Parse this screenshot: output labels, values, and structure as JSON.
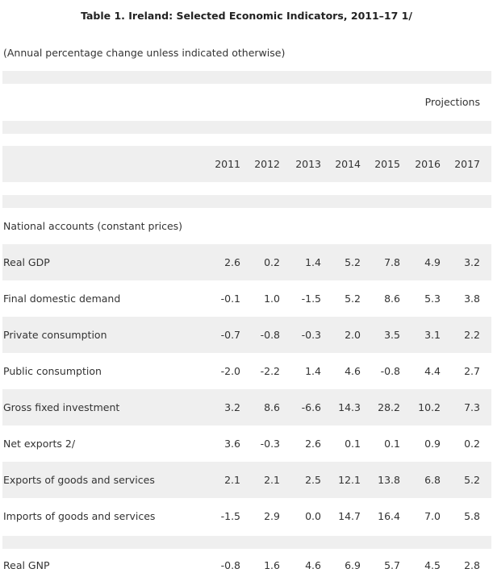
{
  "title": "Table 1. Ireland: Selected Economic Indicators, 2011–17 1/",
  "note": "(Annual percentage change unless indicated otherwise)",
  "projections_label": "Projections",
  "years": [
    "2011",
    "2012",
    "2013",
    "2014",
    "2015",
    "2016",
    "2017"
  ],
  "section": "National accounts (constant prices)",
  "rows": [
    {
      "label": "Real GDP",
      "values": [
        "2.6",
        "0.2",
        "1.4",
        "5.2",
        "7.8",
        "4.9",
        "3.2"
      ]
    },
    {
      "label": "Final domestic demand",
      "values": [
        "-0.1",
        "1.0",
        "-1.5",
        "5.2",
        "8.6",
        "5.3",
        "3.8"
      ]
    },
    {
      "label": "Private consumption",
      "values": [
        "-0.7",
        "-0.8",
        "-0.3",
        "2.0",
        "3.5",
        "3.1",
        "2.2"
      ]
    },
    {
      "label": "Public consumption",
      "values": [
        "-2.0",
        "-2.2",
        "1.4",
        "4.6",
        "-0.8",
        "4.4",
        "2.7"
      ]
    },
    {
      "label": "Gross fixed investment",
      "values": [
        "3.2",
        "8.6",
        "-6.6",
        "14.3",
        "28.2",
        "10.2",
        "7.3"
      ]
    },
    {
      "label": "Net exports 2/",
      "values": [
        "3.6",
        "-0.3",
        "2.6",
        "0.1",
        "0.1",
        "0.9",
        "0.2"
      ]
    },
    {
      "label": "Exports of goods and services",
      "values": [
        "2.1",
        "2.1",
        "2.5",
        "12.1",
        "13.8",
        "6.8",
        "5.2"
      ]
    },
    {
      "label": "Imports of goods and services",
      "values": [
        "-1.5",
        "2.9",
        "0.0",
        "14.7",
        "16.4",
        "7.0",
        "5.8"
      ]
    }
  ],
  "gnp": {
    "label": "Real GNP",
    "values": [
      "-0.8",
      "1.6",
      "4.6",
      "6.9",
      "5.7",
      "4.5",
      "2.8"
    ]
  }
}
